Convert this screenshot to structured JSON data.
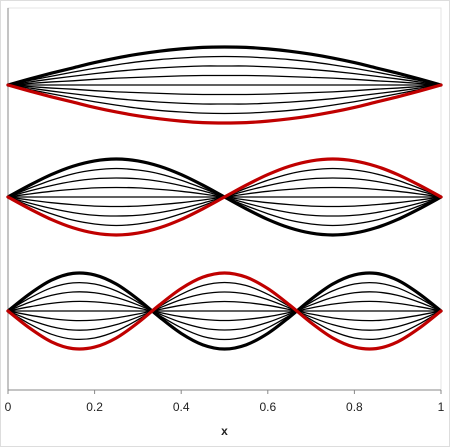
{
  "chart_data": [
    {
      "type": "line",
      "xlim": [
        0,
        1
      ],
      "ylim": [
        -1.5,
        1.5
      ],
      "x": [
        0,
        0.05,
        0.1,
        0.15,
        0.2,
        0.25,
        0.3,
        0.35,
        0.4,
        0.45,
        0.5,
        0.55,
        0.6,
        0.65,
        0.7,
        0.75,
        0.8,
        0.85,
        0.9,
        0.95,
        1
      ],
      "series": [
        {
          "color": "#000000",
          "linewidth": 1.3,
          "values": [
            0,
            0.12,
            0.23,
            0.34,
            0.44,
            0.53,
            0.61,
            0.67,
            0.71,
            0.74,
            0.75,
            0.74,
            0.71,
            0.67,
            0.61,
            0.53,
            0.44,
            0.34,
            0.23,
            0.12,
            0
          ]
        },
        {
          "color": "#000000",
          "linewidth": 1.3,
          "values": [
            0,
            0.08,
            0.16,
            0.23,
            0.3,
            0.36,
            0.41,
            0.45,
            0.48,
            0.5,
            0.5,
            0.5,
            0.48,
            0.45,
            0.41,
            0.36,
            0.3,
            0.23,
            0.16,
            0.08,
            0
          ]
        },
        {
          "color": "#000000",
          "linewidth": 1.3,
          "values": [
            0,
            0.04,
            0.08,
            0.11,
            0.15,
            0.18,
            0.2,
            0.22,
            0.24,
            0.25,
            0.25,
            0.25,
            0.24,
            0.22,
            0.2,
            0.18,
            0.15,
            0.11,
            0.08,
            0.04,
            0
          ]
        },
        {
          "color": "#000000",
          "linewidth": 1.3,
          "values": [
            0,
            0,
            0,
            0,
            0,
            0,
            0,
            0,
            0,
            0,
            0,
            0,
            0,
            0,
            0,
            0,
            0,
            0,
            0,
            0,
            0
          ]
        },
        {
          "color": "#000000",
          "linewidth": 1.3,
          "values": [
            0,
            -0.04,
            -0.08,
            -0.11,
            -0.15,
            -0.18,
            -0.2,
            -0.22,
            -0.24,
            -0.25,
            -0.25,
            -0.25,
            -0.24,
            -0.22,
            -0.2,
            -0.18,
            -0.15,
            -0.11,
            -0.08,
            -0.04,
            0
          ]
        },
        {
          "color": "#000000",
          "linewidth": 1.3,
          "values": [
            0,
            -0.08,
            -0.16,
            -0.23,
            -0.3,
            -0.36,
            -0.41,
            -0.45,
            -0.48,
            -0.5,
            -0.5,
            -0.5,
            -0.48,
            -0.45,
            -0.41,
            -0.36,
            -0.3,
            -0.23,
            -0.16,
            -0.08,
            0
          ]
        },
        {
          "color": "#000000",
          "linewidth": 1.3,
          "values": [
            0,
            -0.12,
            -0.23,
            -0.34,
            -0.44,
            -0.53,
            -0.61,
            -0.67,
            -0.71,
            -0.74,
            -0.75,
            -0.74,
            -0.71,
            -0.67,
            -0.61,
            -0.53,
            -0.44,
            -0.34,
            -0.23,
            -0.12,
            0
          ]
        },
        {
          "color": "#000000",
          "linewidth": 3.2,
          "values": [
            0,
            0.16,
            0.31,
            0.45,
            0.59,
            0.71,
            0.81,
            0.89,
            0.95,
            0.99,
            1,
            0.99,
            0.95,
            0.89,
            0.81,
            0.71,
            0.59,
            0.45,
            0.31,
            0.16,
            0
          ]
        },
        {
          "color": "#c00000",
          "linewidth": 3.2,
          "values": [
            0,
            -0.16,
            -0.31,
            -0.45,
            -0.59,
            -0.71,
            -0.81,
            -0.89,
            -0.95,
            -0.99,
            -1,
            -0.99,
            -0.95,
            -0.89,
            -0.81,
            -0.71,
            -0.59,
            -0.45,
            -0.31,
            -0.16,
            0
          ]
        }
      ]
    },
    {
      "type": "line",
      "xlim": [
        0,
        1
      ],
      "ylim": [
        -1.5,
        1.5
      ],
      "x": [
        0,
        0.05,
        0.1,
        0.15,
        0.2,
        0.25,
        0.3,
        0.35,
        0.4,
        0.45,
        0.5,
        0.55,
        0.6,
        0.65,
        0.7,
        0.75,
        0.8,
        0.85,
        0.9,
        0.95,
        1
      ],
      "series": [
        {
          "color": "#000000",
          "linewidth": 1.3,
          "values": [
            0,
            0.23,
            0.44,
            0.61,
            0.71,
            0.75,
            0.71,
            0.61,
            0.44,
            0.23,
            0,
            -0.23,
            -0.44,
            -0.61,
            -0.71,
            -0.75,
            -0.71,
            -0.61,
            -0.44,
            -0.23,
            0
          ]
        },
        {
          "color": "#000000",
          "linewidth": 1.3,
          "values": [
            0,
            0.16,
            0.3,
            0.41,
            0.48,
            0.5,
            0.48,
            0.41,
            0.3,
            0.16,
            0,
            -0.16,
            -0.3,
            -0.41,
            -0.48,
            -0.5,
            -0.48,
            -0.41,
            -0.3,
            -0.16,
            0
          ]
        },
        {
          "color": "#000000",
          "linewidth": 1.3,
          "values": [
            0,
            0.08,
            0.15,
            0.2,
            0.24,
            0.25,
            0.24,
            0.2,
            0.15,
            0.08,
            0,
            -0.08,
            -0.15,
            -0.2,
            -0.24,
            -0.25,
            -0.24,
            -0.2,
            -0.15,
            -0.08,
            0
          ]
        },
        {
          "color": "#000000",
          "linewidth": 1.3,
          "values": [
            0,
            0,
            0,
            0,
            0,
            0,
            0,
            0,
            0,
            0,
            0,
            0,
            0,
            0,
            0,
            0,
            0,
            0,
            0,
            0,
            0
          ]
        },
        {
          "color": "#000000",
          "linewidth": 1.3,
          "values": [
            0,
            -0.08,
            -0.15,
            -0.2,
            -0.24,
            -0.25,
            -0.24,
            -0.2,
            -0.15,
            -0.08,
            0,
            0.08,
            0.15,
            0.2,
            0.24,
            0.25,
            0.24,
            0.2,
            0.15,
            0.08,
            0
          ]
        },
        {
          "color": "#000000",
          "linewidth": 1.3,
          "values": [
            0,
            -0.16,
            -0.3,
            -0.41,
            -0.48,
            -0.5,
            -0.48,
            -0.41,
            -0.3,
            -0.16,
            0,
            0.16,
            0.3,
            0.41,
            0.48,
            0.5,
            0.48,
            0.41,
            0.3,
            0.16,
            0
          ]
        },
        {
          "color": "#000000",
          "linewidth": 1.3,
          "values": [
            0,
            -0.23,
            -0.44,
            -0.61,
            -0.71,
            -0.75,
            -0.71,
            -0.61,
            -0.44,
            -0.23,
            0,
            0.23,
            0.44,
            0.61,
            0.71,
            0.75,
            0.71,
            0.61,
            0.44,
            0.23,
            0
          ]
        },
        {
          "color": "#000000",
          "linewidth": 3.2,
          "values": [
            0,
            0.31,
            0.59,
            0.81,
            0.95,
            1,
            0.95,
            0.81,
            0.59,
            0.31,
            0,
            -0.31,
            -0.59,
            -0.81,
            -0.95,
            -1,
            -0.95,
            -0.81,
            -0.59,
            -0.31,
            0
          ]
        },
        {
          "color": "#c00000",
          "linewidth": 3.2,
          "values": [
            0,
            -0.31,
            -0.59,
            -0.81,
            -0.95,
            -1,
            -0.95,
            -0.81,
            -0.59,
            -0.31,
            0,
            0.31,
            0.59,
            0.81,
            0.95,
            1,
            0.95,
            0.81,
            0.59,
            0.31,
            0
          ]
        }
      ]
    },
    {
      "type": "line",
      "xlim": [
        0,
        1
      ],
      "ylim": [
        -1.5,
        1.5
      ],
      "xticks": [
        0,
        0.2,
        0.4,
        0.6,
        0.8,
        1
      ],
      "xlabel": "x",
      "x": [
        0,
        0.05,
        0.1,
        0.15,
        0.2,
        0.25,
        0.3,
        0.35,
        0.4,
        0.45,
        0.5,
        0.55,
        0.6,
        0.65,
        0.7,
        0.75,
        0.8,
        0.85,
        0.9,
        0.95,
        1
      ],
      "series": [
        {
          "color": "#000000",
          "linewidth": 1.3,
          "values": [
            0,
            0.34,
            0.61,
            0.74,
            0.71,
            0.53,
            0.23,
            -0.12,
            -0.44,
            -0.67,
            -0.75,
            -0.67,
            -0.44,
            -0.12,
            0.23,
            0.53,
            0.71,
            0.74,
            0.61,
            0.34,
            0
          ]
        },
        {
          "color": "#000000",
          "linewidth": 1.3,
          "values": [
            0,
            0.23,
            0.41,
            0.5,
            0.48,
            0.36,
            0.16,
            -0.08,
            -0.3,
            -0.45,
            -0.5,
            -0.45,
            -0.3,
            -0.08,
            0.16,
            0.36,
            0.48,
            0.5,
            0.41,
            0.23,
            0
          ]
        },
        {
          "color": "#000000",
          "linewidth": 1.3,
          "values": [
            0,
            0.11,
            0.2,
            0.25,
            0.24,
            0.18,
            0.08,
            -0.04,
            -0.15,
            -0.22,
            -0.25,
            -0.22,
            -0.15,
            -0.04,
            0.08,
            0.18,
            0.24,
            0.25,
            0.2,
            0.11,
            0
          ]
        },
        {
          "color": "#000000",
          "linewidth": 1.3,
          "values": [
            0,
            0,
            0,
            0,
            0,
            0,
            0,
            0,
            0,
            0,
            0,
            0,
            0,
            0,
            0,
            0,
            0,
            0,
            0,
            0,
            0
          ]
        },
        {
          "color": "#000000",
          "linewidth": 1.3,
          "values": [
            0,
            -0.11,
            -0.2,
            -0.25,
            -0.24,
            -0.18,
            -0.08,
            0.04,
            0.15,
            0.22,
            0.25,
            0.22,
            0.15,
            0.04,
            -0.08,
            -0.18,
            -0.24,
            -0.25,
            -0.2,
            -0.11,
            0
          ]
        },
        {
          "color": "#000000",
          "linewidth": 1.3,
          "values": [
            0,
            -0.23,
            -0.41,
            -0.5,
            -0.48,
            -0.36,
            -0.16,
            0.08,
            0.3,
            0.45,
            0.5,
            0.45,
            0.3,
            0.08,
            -0.16,
            -0.36,
            -0.48,
            -0.5,
            -0.41,
            -0.23,
            0
          ]
        },
        {
          "color": "#000000",
          "linewidth": 1.3,
          "values": [
            0,
            -0.34,
            -0.61,
            -0.74,
            -0.71,
            -0.53,
            -0.23,
            0.12,
            0.44,
            0.67,
            0.75,
            0.67,
            0.44,
            0.12,
            -0.23,
            -0.53,
            -0.71,
            -0.74,
            -0.61,
            -0.34,
            0
          ]
        },
        {
          "color": "#000000",
          "linewidth": 3.2,
          "values": [
            0,
            0.45,
            0.81,
            0.99,
            0.95,
            0.71,
            0.31,
            -0.16,
            -0.59,
            -0.89,
            -1,
            -0.89,
            -0.59,
            -0.16,
            0.31,
            0.71,
            0.95,
            0.99,
            0.81,
            0.45,
            0
          ]
        },
        {
          "color": "#c00000",
          "linewidth": 3.2,
          "values": [
            0,
            -0.45,
            -0.81,
            -0.99,
            -0.95,
            -0.71,
            -0.31,
            0.16,
            0.59,
            0.89,
            1,
            0.89,
            0.59,
            0.16,
            -0.31,
            -0.71,
            -0.95,
            -0.99,
            -0.81,
            -0.45,
            0
          ]
        }
      ]
    }
  ]
}
